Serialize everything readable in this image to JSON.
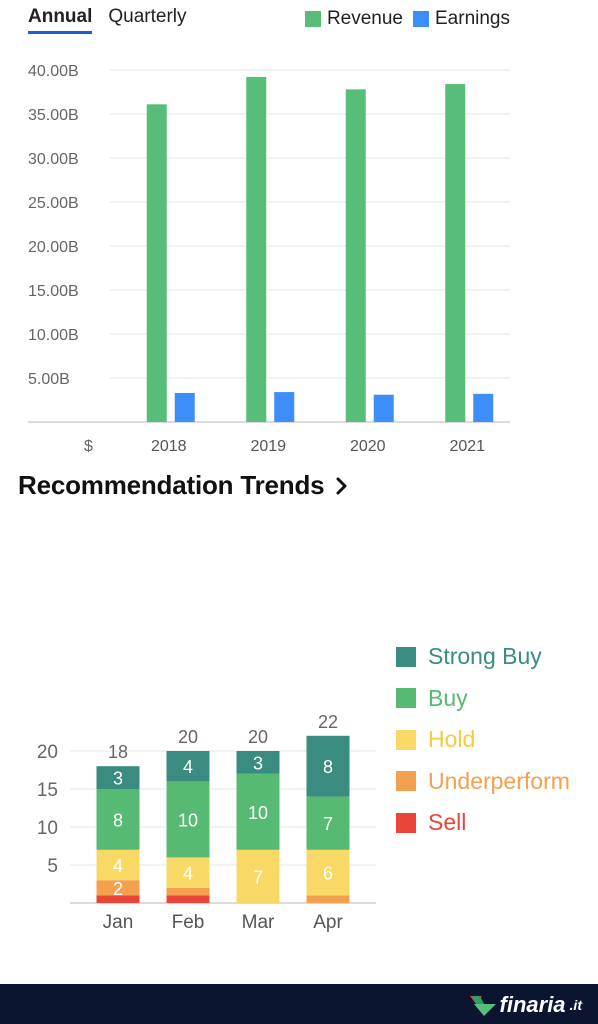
{
  "tabs": {
    "annual": "Annual",
    "quarterly": "Quarterly"
  },
  "financials_legend": {
    "revenue": "Revenue",
    "earnings": "Earnings"
  },
  "recommendation": {
    "title": "Recommendation Trends"
  },
  "footer": {
    "logo_text": "finaria",
    "logo_suffix": ".it"
  },
  "colors": {
    "revenue": "#56be78",
    "earnings": "#3d8ef8",
    "strong_buy": "#3a8c80",
    "buy": "#56ba73",
    "hold": "#f8d966",
    "underperform": "#f3a04f",
    "sell": "#ea4539",
    "footer": "#0c1530"
  },
  "chart_data": [
    {
      "type": "bar",
      "title": "",
      "categories": [
        "2018",
        "2019",
        "2020",
        "2021"
      ],
      "series": [
        {
          "name": "Revenue",
          "values": [
            36.1,
            39.2,
            37.8,
            38.4
          ]
        },
        {
          "name": "Earnings",
          "values": [
            3.3,
            3.4,
            3.1,
            3.2
          ]
        }
      ],
      "y_ticks": [
        "5.00B",
        "10.00B",
        "15.00B",
        "20.00B",
        "25.00B",
        "30.00B",
        "35.00B",
        "40.00B"
      ],
      "y_tick_values": [
        5,
        10,
        15,
        20,
        25,
        30,
        35,
        40
      ],
      "currency_label": "$",
      "ylim": [
        0,
        40
      ],
      "grid": true,
      "legend": "top-right"
    },
    {
      "type": "bar",
      "stacked": true,
      "title": "Recommendation Trends",
      "categories": [
        "Jan",
        "Feb",
        "Mar",
        "Apr"
      ],
      "series": [
        {
          "name": "Sell",
          "key": "sell",
          "values": [
            1,
            1,
            0,
            0
          ]
        },
        {
          "name": "Underperform",
          "key": "underperform",
          "values": [
            2,
            1,
            0,
            1
          ]
        },
        {
          "name": "Hold",
          "key": "hold",
          "values": [
            4,
            4,
            7,
            6
          ]
        },
        {
          "name": "Buy",
          "key": "buy",
          "values": [
            8,
            10,
            10,
            7
          ]
        },
        {
          "name": "Strong Buy",
          "key": "strong_buy",
          "values": [
            3,
            4,
            3,
            8
          ]
        }
      ],
      "totals": [
        18,
        20,
        20,
        22
      ],
      "y_ticks": [
        5,
        10,
        15,
        20
      ],
      "ylim": [
        0,
        22
      ],
      "legend": "right"
    }
  ]
}
